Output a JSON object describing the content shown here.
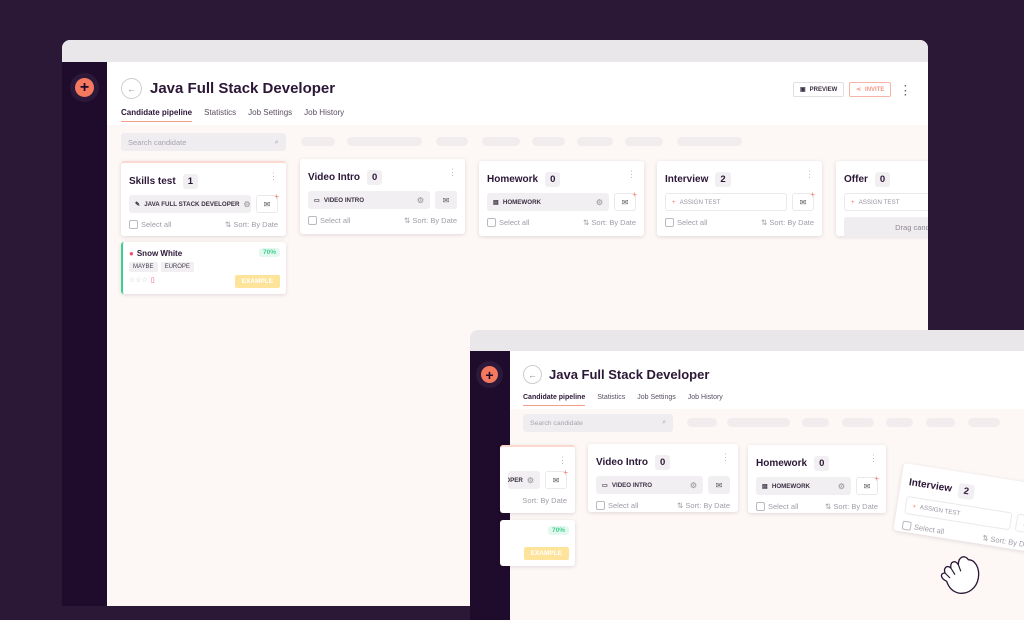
{
  "app": {
    "add_icon": "plus-circle-icon",
    "accent": "#f4795f"
  },
  "header": {
    "title": "Java Full Stack Developer",
    "preview_label": "PREVIEW",
    "invite_label": "INVITE"
  },
  "tabs": [
    {
      "label": "Candidate pipeline",
      "active": true
    },
    {
      "label": "Statistics"
    },
    {
      "label": "Job Settings"
    },
    {
      "label": "Job History"
    }
  ],
  "search": {
    "placeholder": "Search candidate"
  },
  "columns": [
    {
      "name": "Skills test",
      "count": "1",
      "test": "JAVA FULL STACK DEVELOPER",
      "test_icon": "wrench-icon",
      "select_all": "Select all",
      "sort": "Sort: By Date"
    },
    {
      "name": "Video Intro",
      "count": "0",
      "test": "VIDEO INTRO",
      "test_icon": "video-icon",
      "select_all": "Select all",
      "sort": "Sort: By Date"
    },
    {
      "name": "Homework",
      "count": "0",
      "test": "HOMEWORK",
      "test_icon": "clipboard-icon",
      "select_all": "Select all",
      "sort": "Sort: By Date"
    },
    {
      "name": "Interview",
      "count": "2",
      "test": "ASSIGN TEST",
      "test_icon": "plus-icon",
      "select_all": "Select all",
      "sort": "Sort: By Date"
    },
    {
      "name": "Offer",
      "count": "0",
      "test": "ASSIGN TEST",
      "test_icon": "plus-icon",
      "drag_text": "Drag candidat"
    }
  ],
  "candidate": {
    "name": "Snow White",
    "score": "70%",
    "tags": [
      "MAYBE",
      "EUROPE"
    ],
    "example": "EXAMPLE",
    "score_color": "#3ecf8e"
  },
  "partial_column": {
    "test": "LOPER"
  }
}
